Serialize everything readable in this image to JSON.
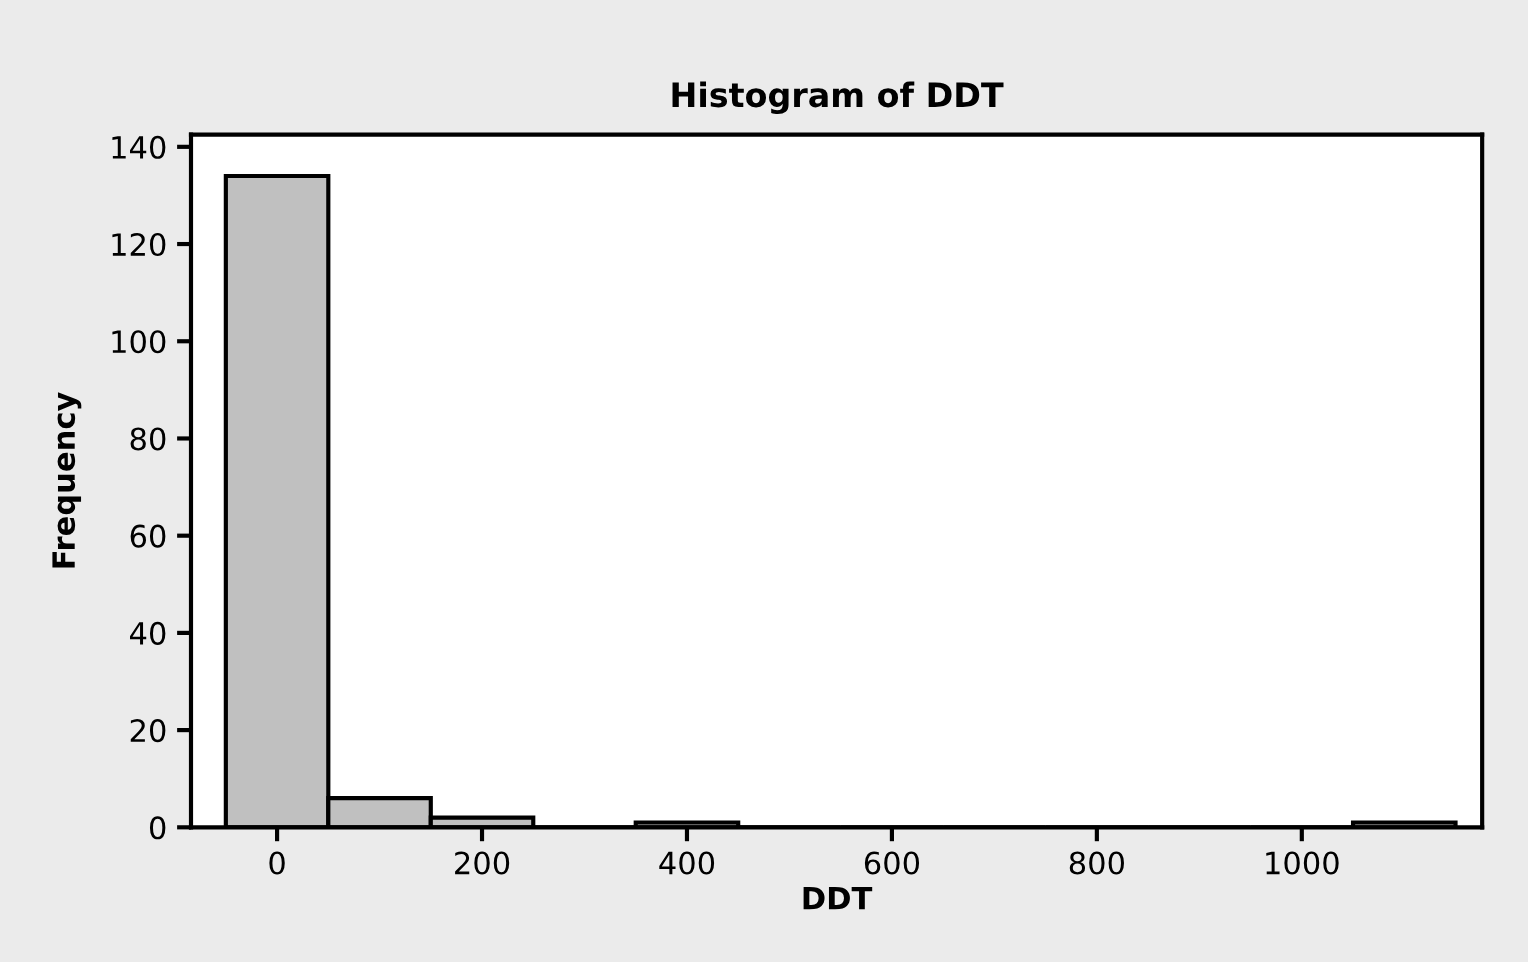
{
  "chart_data": {
    "type": "histogram",
    "title": "Histogram of DDT",
    "xlabel": "DDT",
    "ylabel": "Frequency",
    "bins": [
      -50,
      50,
      150,
      250,
      350,
      450,
      550,
      650,
      750,
      850,
      950,
      1050,
      1150
    ],
    "values": [
      134,
      6,
      2,
      0,
      1,
      0,
      0,
      0,
      0,
      0,
      0,
      1
    ],
    "color": "#c0c0c0",
    "xlim": [
      -84,
      1176
    ],
    "ylim": [
      0,
      142.5
    ],
    "xticks": [
      0,
      200,
      400,
      600,
      800,
      1000
    ],
    "yticks": [
      0,
      20,
      40,
      60,
      80,
      100,
      120,
      140
    ],
    "grid": false
  }
}
